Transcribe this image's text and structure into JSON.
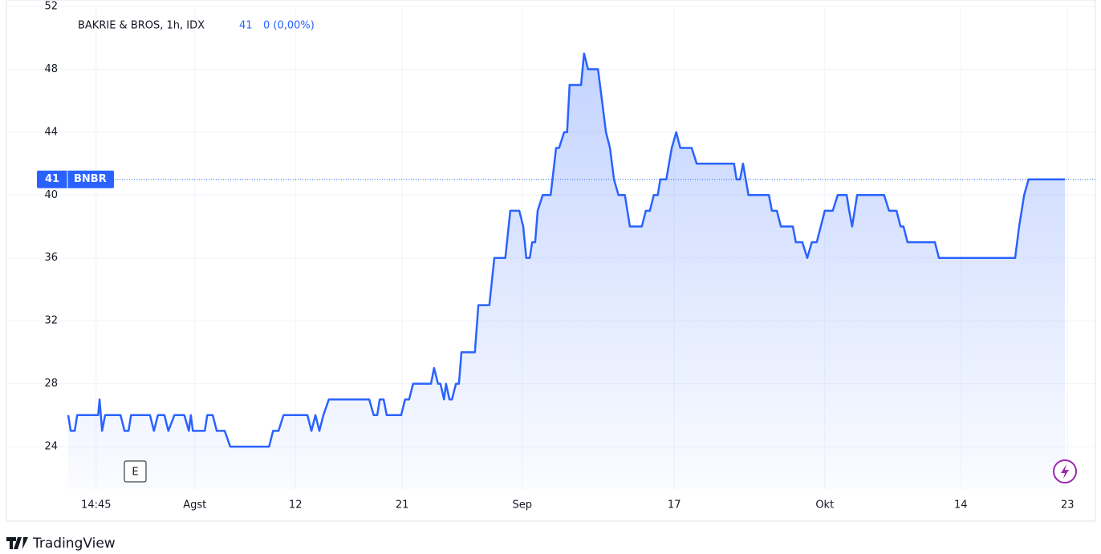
{
  "chart_data": {
    "type": "area",
    "title": "BAKRIE & BROS, 1h, IDX",
    "last_price": 41,
    "change": "0 (0,00%)",
    "symbol": "BNBR",
    "event_marker": "E",
    "color": "#2962ff",
    "grid": true,
    "x": [
      0,
      0.5,
      1.3,
      1.8,
      6.0,
      6.3,
      6.8,
      7.4,
      10.5,
      11.3,
      12.1,
      12.6,
      16.4,
      17.2,
      18.0,
      19.3,
      20.1,
      21.3,
      23.3,
      24.2,
      24.6,
      25.0,
      27.4,
      27.9,
      29.0,
      29.8,
      31.4,
      32.5,
      40.3,
      41.1,
      42.2,
      43.2,
      48.0,
      48.8,
      49.6,
      50.4,
      51.2,
      52.3,
      60.4,
      61.3,
      62.0,
      62.5,
      63.3,
      63.9,
      66.8,
      67.6,
      68.4,
      69.2,
      72.8,
      73.4,
      74.2,
      74.7,
      75.4,
      75.8,
      76.5,
      77.0,
      77.8,
      78.4,
      78.9,
      81.6,
      82.3,
      84.5,
      85.5,
      87.7,
      88.7,
      90.5,
      91.3,
      91.9,
      92.6,
      93.1,
      93.7,
      94.2,
      95.2,
      96.8,
      97.9,
      98.5,
      99.5,
      100.1,
      100.6,
      102.9,
      103.5,
      104.3,
      106.3,
      107.1,
      107.9,
      108.7,
      109.5,
      110.4,
      111.7,
      112.7,
      115.1,
      115.9,
      116.7,
      117.5,
      118.3,
      118.8,
      120.0,
      121.1,
      122.0,
      122.8,
      125.1,
      126.1,
      133.6,
      134.1,
      134.8,
      135.4,
      136.5,
      140.6,
      141.2,
      142.2,
      143.0,
      145.4,
      146.0,
      147.3,
      148.3,
      149.2,
      150.2,
      151.8,
      153.4,
      154.4,
      156.2,
      156.7,
      157.3,
      158.3,
      163.7,
      164.7,
      166.2,
      167.0,
      167.6,
      168.4,
      173.9,
      174.7,
      190.0,
      190.8,
      191.8,
      192.7,
      200.0
    ],
    "values": [
      26,
      25,
      25,
      26,
      26,
      27,
      25,
      26,
      26,
      25,
      25,
      26,
      26,
      25,
      26,
      26,
      25,
      26,
      26,
      25,
      26,
      25,
      25,
      26,
      26,
      25,
      25,
      24,
      24,
      25,
      25,
      26,
      26,
      25,
      26,
      25,
      26,
      27,
      27,
      26,
      26,
      27,
      27,
      26,
      26,
      27,
      27,
      28,
      28,
      29,
      28,
      28,
      27,
      28,
      27,
      27,
      28,
      28,
      30,
      30,
      33,
      33,
      36,
      36,
      39,
      39,
      38,
      36,
      36,
      37,
      37,
      39,
      40,
      40,
      43,
      43,
      44,
      44,
      47,
      47,
      49,
      48,
      48,
      46,
      44,
      43,
      41,
      40,
      40,
      38,
      38,
      39,
      39,
      40,
      40,
      41,
      41,
      43,
      44,
      43,
      43,
      42,
      42,
      41,
      41,
      42,
      40,
      40,
      39,
      39,
      38,
      38,
      37,
      37,
      36,
      37,
      37,
      39,
      39,
      40,
      40,
      39,
      38,
      40,
      40,
      39,
      39,
      38,
      38,
      37,
      37,
      36,
      36,
      38,
      40,
      41,
      41
    ],
    "xlim": [
      -12.4,
      206.1
    ],
    "xticks": [
      {
        "value": 5.6,
        "label": "14:45"
      },
      {
        "value": 25.4,
        "label": "Agst"
      },
      {
        "value": 45.6,
        "label": "12"
      },
      {
        "value": 67.0,
        "label": "21"
      },
      {
        "value": 91.1,
        "label": "Sep"
      },
      {
        "value": 121.6,
        "label": "17"
      },
      {
        "value": 151.8,
        "label": "Okt"
      },
      {
        "value": 179.1,
        "label": "14"
      },
      {
        "value": 200.5,
        "label": "23"
      }
    ],
    "ylim": [
      21.3,
      52
    ],
    "yticks": [
      24,
      28,
      32,
      36,
      40,
      44,
      48,
      52
    ]
  },
  "footer": {
    "brand": "TradingView"
  }
}
